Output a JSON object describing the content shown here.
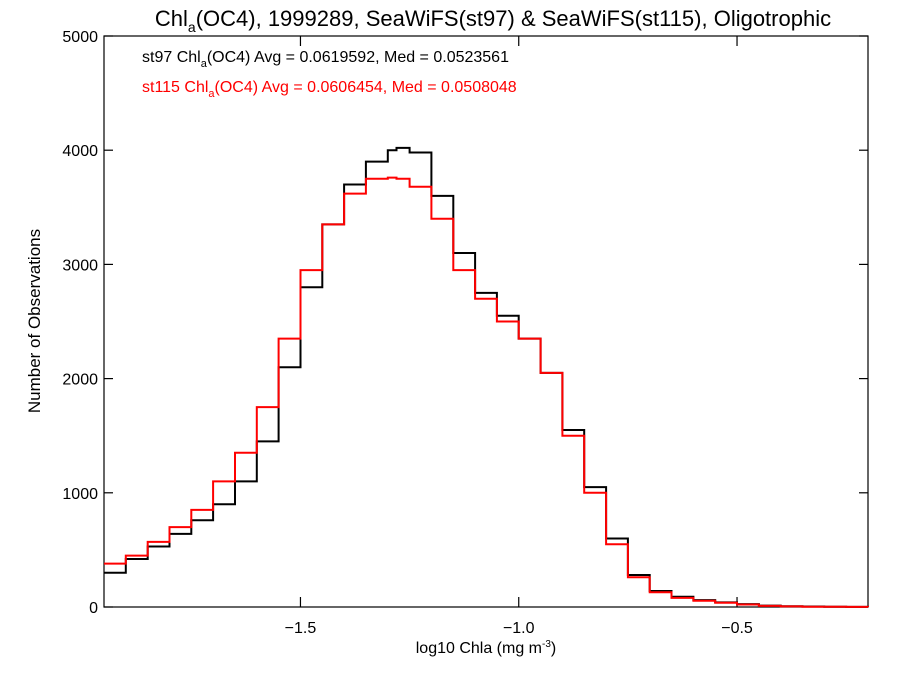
{
  "chart_data": {
    "type": "line",
    "title": {
      "prefix": "Chl",
      "sub": "a",
      "suffix": "(OC4), 1999289, SeaWiFS(st97) & SeaWiFS(st115), Oligotrophic"
    },
    "xlabel": {
      "text": "log10 Chla (mg m",
      "sup": "-3",
      "close": ")"
    },
    "ylabel": "Number of Observations",
    "xlim": [
      -1.95,
      -0.2
    ],
    "ylim": [
      0,
      5000
    ],
    "xticks": [
      {
        "value": -1.5,
        "label": "−1.5"
      },
      {
        "value": -1.0,
        "label": "−1.0"
      },
      {
        "value": -0.5,
        "label": "−0.5"
      }
    ],
    "yticks": [
      {
        "value": 0,
        "label": "0"
      },
      {
        "value": 1000,
        "label": "1000"
      },
      {
        "value": 2000,
        "label": "2000"
      },
      {
        "value": 3000,
        "label": "3000"
      },
      {
        "value": 4000,
        "label": "4000"
      },
      {
        "value": 5000,
        "label": "5000"
      }
    ],
    "grid": false,
    "step": "histogram",
    "annotations": [
      {
        "prefix": "st97 Chl",
        "sub": "a",
        "suffix": "(OC4) Avg = 0.0619592, Med = 0.0523561",
        "color": "#000000"
      },
      {
        "prefix": "st115 Chl",
        "sub": "a",
        "suffix": "(OC4) Avg = 0.0606454, Med = 0.0508048",
        "color": "#ff0000"
      }
    ],
    "series": [
      {
        "color": "#000000",
        "x": [
          -1.95,
          -1.9,
          -1.85,
          -1.8,
          -1.75,
          -1.7,
          -1.65,
          -1.6,
          -1.55,
          -1.5,
          -1.45,
          -1.4,
          -1.35,
          -1.3,
          -1.28,
          -1.25,
          -1.2,
          -1.15,
          -1.1,
          -1.05,
          -1.0,
          -0.95,
          -0.9,
          -0.85,
          -0.8,
          -0.75,
          -0.7,
          -0.65,
          -0.6,
          -0.55,
          -0.5,
          -0.45,
          -0.4,
          -0.35,
          -0.3,
          -0.25,
          -0.2
        ],
        "y": [
          300,
          420,
          530,
          640,
          760,
          900,
          1100,
          1450,
          2100,
          2800,
          3350,
          3700,
          3900,
          4000,
          4020,
          3980,
          3600,
          3100,
          2750,
          2550,
          2350,
          2050,
          1550,
          1050,
          600,
          280,
          140,
          90,
          60,
          40,
          25,
          12,
          6,
          4,
          2,
          1,
          0
        ]
      },
      {
        "color": "#ff0000",
        "x": [
          -1.95,
          -1.9,
          -1.85,
          -1.8,
          -1.75,
          -1.7,
          -1.65,
          -1.6,
          -1.55,
          -1.5,
          -1.45,
          -1.4,
          -1.35,
          -1.3,
          -1.28,
          -1.25,
          -1.2,
          -1.15,
          -1.1,
          -1.05,
          -1.0,
          -0.95,
          -0.9,
          -0.85,
          -0.8,
          -0.75,
          -0.7,
          -0.65,
          -0.6,
          -0.55,
          -0.5,
          -0.45,
          -0.4,
          -0.35,
          -0.3,
          -0.25,
          -0.2
        ],
        "y": [
          380,
          450,
          570,
          700,
          850,
          1100,
          1350,
          1750,
          2350,
          2950,
          3350,
          3620,
          3750,
          3760,
          3750,
          3680,
          3400,
          2950,
          2700,
          2500,
          2350,
          2050,
          1500,
          1000,
          550,
          260,
          130,
          80,
          55,
          38,
          22,
          10,
          5,
          3,
          2,
          1,
          0
        ]
      }
    ]
  }
}
